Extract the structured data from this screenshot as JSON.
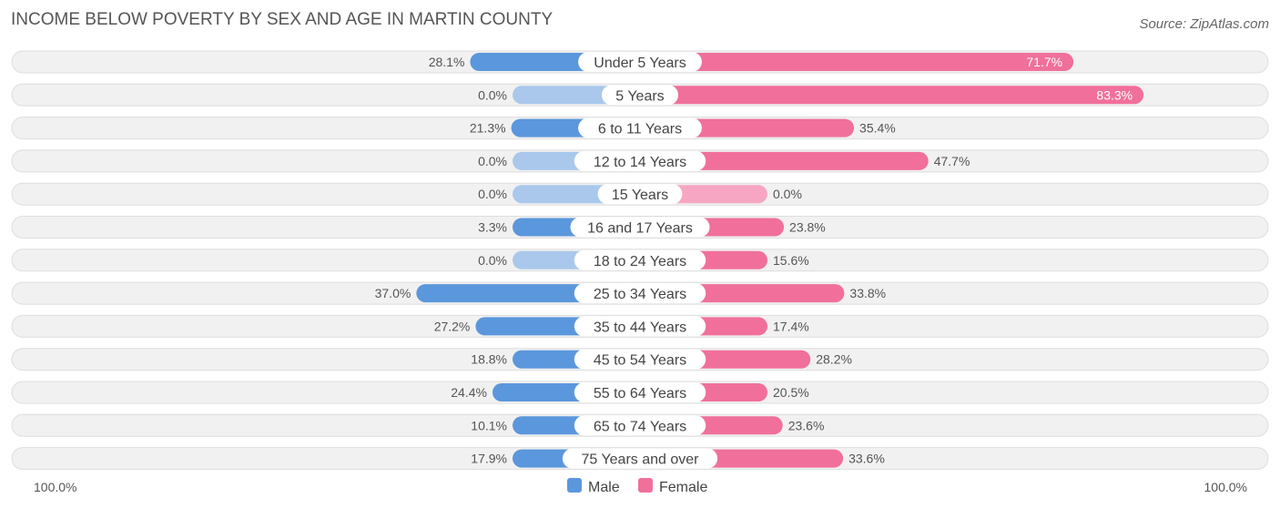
{
  "chart_data": {
    "type": "bar",
    "orientation": "horizontal-diverging",
    "title": "INCOME BELOW POVERTY BY SEX AND AGE IN MARTIN COUNTY",
    "source": "Source: ZipAtlas.com",
    "categories": [
      "Under 5 Years",
      "5 Years",
      "6 to 11 Years",
      "12 to 14 Years",
      "15 Years",
      "16 and 17 Years",
      "18 to 24 Years",
      "25 to 34 Years",
      "35 to 44 Years",
      "45 to 54 Years",
      "55 to 64 Years",
      "65 to 74 Years",
      "75 Years and over"
    ],
    "series": [
      {
        "name": "Male",
        "values": [
          28.1,
          0.0,
          21.3,
          0.0,
          0.0,
          3.3,
          0.0,
          37.0,
          27.2,
          18.8,
          24.4,
          10.1,
          17.9
        ],
        "labels": [
          "28.1%",
          "0.0%",
          "21.3%",
          "0.0%",
          "0.0%",
          "3.3%",
          "0.0%",
          "37.0%",
          "27.2%",
          "18.8%",
          "24.4%",
          "10.1%",
          "17.9%"
        ]
      },
      {
        "name": "Female",
        "values": [
          71.7,
          83.3,
          35.4,
          47.7,
          0.0,
          23.8,
          15.6,
          33.8,
          17.4,
          28.2,
          20.5,
          23.6,
          33.6
        ],
        "labels": [
          "71.7%",
          "83.3%",
          "35.4%",
          "47.7%",
          "0.0%",
          "23.8%",
          "15.6%",
          "33.8%",
          "17.4%",
          "28.2%",
          "20.5%",
          "23.6%",
          "33.6%"
        ]
      }
    ],
    "xlim": [
      -100,
      100
    ],
    "axis_left_label": "100.0%",
    "axis_right_label": "100.0%",
    "legend": [
      "Male",
      "Female"
    ],
    "legend_position": "bottom-center",
    "colors": {
      "male": "#5b97dc",
      "male_light": "#a9c8ec",
      "female": "#f0709b",
      "female_light": "#f6a6c2",
      "row_bg": "#f1f1f1",
      "row_border": "#dedede"
    }
  }
}
